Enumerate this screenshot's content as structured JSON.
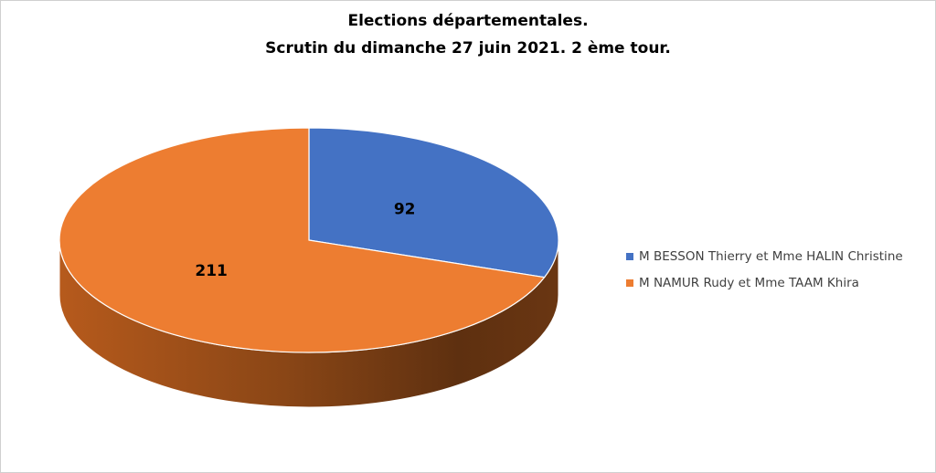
{
  "chart_data": {
    "type": "pie",
    "title": "Elections départementales.",
    "subtitle": "Scrutin du dimanche 27 juin 2021. 2 ème tour.",
    "style": "3d",
    "slices": [
      {
        "label": "M BESSON Thierry et Mme HALIN Christine",
        "value": 92,
        "color": "#4472C4"
      },
      {
        "label": "M NAMUR Rudy et Mme TAAM Khira",
        "value": 211,
        "color": "#ED7D31"
      }
    ],
    "legend_position": "right"
  }
}
